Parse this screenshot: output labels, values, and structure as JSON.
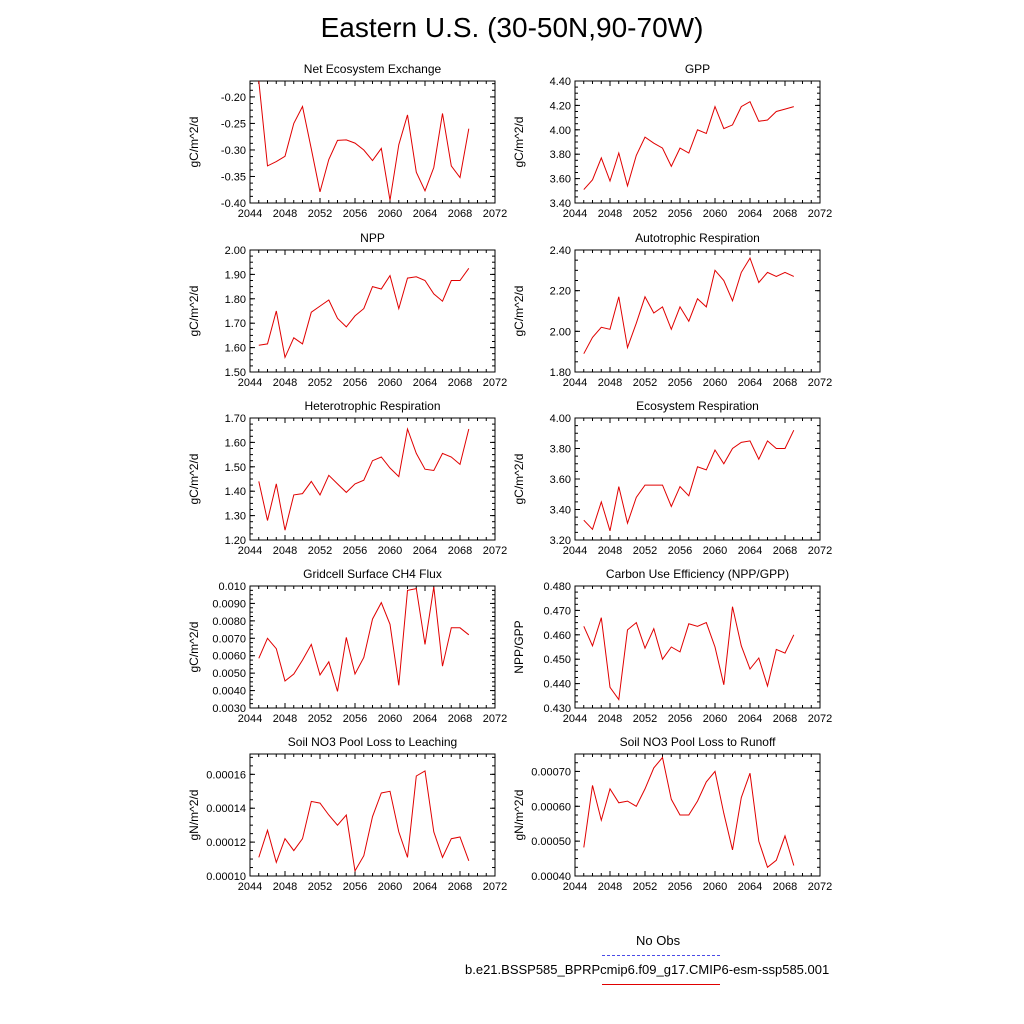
{
  "figure_title": "Eastern U.S. (30-50N,90-70W)",
  "legend": {
    "obs_label": "No Obs",
    "obs_color": "#4a4ae6",
    "model_label": "b.e21.BSSP585_BPRPcmip6.f09_g17.CMIP6-esm-ssp585.001",
    "model_color": "#e00000"
  },
  "chart_data": [
    {
      "type": "line",
      "title": "Net Ecosystem Exchange",
      "ylabel": "gC/m^2/d",
      "xlim": [
        2044,
        2072
      ],
      "xticks": [
        "2044",
        "2048",
        "2052",
        "2056",
        "2060",
        "2064",
        "2068",
        "2072"
      ],
      "ylim": [
        -0.4,
        -0.17
      ],
      "yticks": [
        "-0.20",
        "-0.25",
        "-0.30",
        "-0.35",
        "-0.40"
      ],
      "series": [
        {
          "color": "#e00000",
          "x": [
            2045,
            2046,
            2047,
            2048,
            2049,
            2050,
            2051,
            2052,
            2053,
            2054,
            2055,
            2056,
            2057,
            2058,
            2059,
            2060,
            2061,
            2062,
            2063,
            2064,
            2065,
            2066,
            2067,
            2068,
            2069
          ],
          "values": [
            -0.17,
            -0.33,
            -0.322,
            -0.312,
            -0.25,
            -0.218,
            -0.298,
            -0.379,
            -0.318,
            -0.282,
            -0.281,
            -0.287,
            -0.3,
            -0.32,
            -0.297,
            -0.395,
            -0.29,
            -0.234,
            -0.342,
            -0.377,
            -0.333,
            -0.231,
            -0.33,
            -0.352,
            -0.26
          ]
        }
      ]
    },
    {
      "type": "line",
      "title": "GPP",
      "ylabel": "gC/m^2/d",
      "xlim": [
        2044,
        2072
      ],
      "xticks": [
        "2044",
        "2048",
        "2052",
        "2056",
        "2060",
        "2064",
        "2068",
        "2072"
      ],
      "ylim": [
        3.4,
        4.4
      ],
      "yticks": [
        "4.40",
        "4.20",
        "4.00",
        "3.80",
        "3.60",
        "3.40"
      ],
      "series": [
        {
          "color": "#e00000",
          "x": [
            2045,
            2046,
            2047,
            2048,
            2049,
            2050,
            2051,
            2052,
            2053,
            2054,
            2055,
            2056,
            2057,
            2058,
            2059,
            2060,
            2061,
            2062,
            2063,
            2064,
            2065,
            2066,
            2067,
            2068,
            2069
          ],
          "values": [
            3.51,
            3.59,
            3.77,
            3.58,
            3.81,
            3.54,
            3.79,
            3.94,
            3.89,
            3.85,
            3.7,
            3.85,
            3.81,
            4.0,
            3.97,
            4.19,
            4.01,
            4.04,
            4.19,
            4.23,
            4.07,
            4.08,
            4.15,
            4.17,
            4.19
          ]
        }
      ]
    },
    {
      "type": "line",
      "title": "NPP",
      "ylabel": "gC/m^2/d",
      "xlim": [
        2044,
        2072
      ],
      "xticks": [
        "2044",
        "2048",
        "2052",
        "2056",
        "2060",
        "2064",
        "2068",
        "2072"
      ],
      "ylim": [
        1.5,
        2.0
      ],
      "yticks": [
        "2.00",
        "1.90",
        "1.80",
        "1.70",
        "1.60",
        "1.50"
      ],
      "series": [
        {
          "color": "#e00000",
          "x": [
            2045,
            2046,
            2047,
            2048,
            2049,
            2050,
            2051,
            2052,
            2053,
            2054,
            2055,
            2056,
            2057,
            2058,
            2059,
            2060,
            2061,
            2062,
            2063,
            2064,
            2065,
            2066,
            2067,
            2068,
            2069
          ],
          "values": [
            1.61,
            1.615,
            1.75,
            1.56,
            1.64,
            1.615,
            1.745,
            1.77,
            1.795,
            1.72,
            1.685,
            1.73,
            1.76,
            1.85,
            1.84,
            1.895,
            1.76,
            1.885,
            1.89,
            1.875,
            1.82,
            1.79,
            1.875,
            1.875,
            1.925
          ]
        }
      ]
    },
    {
      "type": "line",
      "title": "Autotrophic Respiration",
      "ylabel": "gC/m^2/d",
      "xlim": [
        2044,
        2072
      ],
      "xticks": [
        "2044",
        "2048",
        "2052",
        "2056",
        "2060",
        "2064",
        "2068",
        "2072"
      ],
      "ylim": [
        1.8,
        2.4
      ],
      "yticks": [
        "2.40",
        "2.20",
        "2.00",
        "1.80"
      ],
      "series": [
        {
          "color": "#e00000",
          "x": [
            2045,
            2046,
            2047,
            2048,
            2049,
            2050,
            2051,
            2052,
            2053,
            2054,
            2055,
            2056,
            2057,
            2058,
            2059,
            2060,
            2061,
            2062,
            2063,
            2064,
            2065,
            2066,
            2067,
            2068,
            2069
          ],
          "values": [
            1.89,
            1.97,
            2.02,
            2.01,
            2.17,
            1.92,
            2.04,
            2.17,
            2.09,
            2.12,
            2.01,
            2.12,
            2.05,
            2.16,
            2.12,
            2.3,
            2.25,
            2.15,
            2.29,
            2.36,
            2.24,
            2.29,
            2.27,
            2.29,
            2.27
          ]
        }
      ]
    },
    {
      "type": "line",
      "title": "Heterotrophic Respiration",
      "ylabel": "gC/m^2/d",
      "xlim": [
        2044,
        2072
      ],
      "xticks": [
        "2044",
        "2048",
        "2052",
        "2056",
        "2060",
        "2064",
        "2068",
        "2072"
      ],
      "ylim": [
        1.2,
        1.7
      ],
      "yticks": [
        "1.70",
        "1.60",
        "1.50",
        "1.40",
        "1.30",
        "1.20"
      ],
      "series": [
        {
          "color": "#e00000",
          "x": [
            2045,
            2046,
            2047,
            2048,
            2049,
            2050,
            2051,
            2052,
            2053,
            2054,
            2055,
            2056,
            2057,
            2058,
            2059,
            2060,
            2061,
            2062,
            2063,
            2064,
            2065,
            2066,
            2067,
            2068,
            2069
          ],
          "values": [
            1.44,
            1.28,
            1.43,
            1.24,
            1.385,
            1.39,
            1.44,
            1.385,
            1.465,
            1.43,
            1.395,
            1.43,
            1.445,
            1.525,
            1.54,
            1.495,
            1.46,
            1.655,
            1.555,
            1.49,
            1.485,
            1.555,
            1.54,
            1.51,
            1.655
          ]
        }
      ]
    },
    {
      "type": "line",
      "title": "Ecosystem Respiration",
      "ylabel": "gC/m^2/d",
      "xlim": [
        2044,
        2072
      ],
      "xticks": [
        "2044",
        "2048",
        "2052",
        "2056",
        "2060",
        "2064",
        "2068",
        "2072"
      ],
      "ylim": [
        3.2,
        4.0
      ],
      "yticks": [
        "4.00",
        "3.80",
        "3.60",
        "3.40",
        "3.20"
      ],
      "series": [
        {
          "color": "#e00000",
          "x": [
            2045,
            2046,
            2047,
            2048,
            2049,
            2050,
            2051,
            2052,
            2053,
            2054,
            2055,
            2056,
            2057,
            2058,
            2059,
            2060,
            2061,
            2062,
            2063,
            2064,
            2065,
            2066,
            2067,
            2068,
            2069
          ],
          "values": [
            3.33,
            3.27,
            3.45,
            3.26,
            3.55,
            3.31,
            3.48,
            3.56,
            3.56,
            3.56,
            3.42,
            3.55,
            3.49,
            3.68,
            3.66,
            3.79,
            3.7,
            3.8,
            3.84,
            3.85,
            3.73,
            3.85,
            3.8,
            3.8,
            3.92
          ]
        }
      ]
    },
    {
      "type": "line",
      "title": "Gridcell Surface CH4 Flux",
      "ylabel": "gC/m^2/d",
      "xlim": [
        2044,
        2072
      ],
      "xticks": [
        "2044",
        "2048",
        "2052",
        "2056",
        "2060",
        "2064",
        "2068",
        "2072"
      ],
      "ylim": [
        0.003,
        0.01
      ],
      "yticks": [
        "0.010",
        "0.0090",
        "0.0080",
        "0.0070",
        "0.0060",
        "0.0050",
        "0.0040",
        "0.0030"
      ],
      "series": [
        {
          "color": "#e00000",
          "x": [
            2045,
            2046,
            2047,
            2048,
            2049,
            2050,
            2051,
            2052,
            2053,
            2054,
            2055,
            2056,
            2057,
            2058,
            2059,
            2060,
            2061,
            2062,
            2063,
            2064,
            2065,
            2066,
            2067,
            2068,
            2069
          ],
          "values": [
            0.00585,
            0.007,
            0.0064,
            0.00455,
            0.00495,
            0.00575,
            0.00665,
            0.0049,
            0.00565,
            0.00395,
            0.00705,
            0.00495,
            0.0059,
            0.0081,
            0.00905,
            0.0078,
            0.0043,
            0.00975,
            0.00985,
            0.00665,
            0.00995,
            0.0054,
            0.0076,
            0.0076,
            0.0072
          ]
        }
      ]
    },
    {
      "type": "line",
      "title": "Carbon Use Efficiency (NPP/GPP)",
      "ylabel": "NPP/GPP",
      "xlim": [
        2044,
        2072
      ],
      "xticks": [
        "2044",
        "2048",
        "2052",
        "2056",
        "2060",
        "2064",
        "2068",
        "2072"
      ],
      "ylim": [
        0.43,
        0.48
      ],
      "yticks": [
        "0.480",
        "0.470",
        "0.460",
        "0.450",
        "0.440",
        "0.430"
      ],
      "series": [
        {
          "color": "#e00000",
          "x": [
            2045,
            2046,
            2047,
            2048,
            2049,
            2050,
            2051,
            2052,
            2053,
            2054,
            2055,
            2056,
            2057,
            2058,
            2059,
            2060,
            2061,
            2062,
            2063,
            2064,
            2065,
            2066,
            2067,
            2068,
            2069
          ],
          "values": [
            0.4635,
            0.4555,
            0.467,
            0.4385,
            0.4335,
            0.462,
            0.465,
            0.4545,
            0.4625,
            0.45,
            0.455,
            0.453,
            0.4645,
            0.4635,
            0.465,
            0.455,
            0.4395,
            0.4715,
            0.4555,
            0.446,
            0.4505,
            0.439,
            0.454,
            0.4525,
            0.46
          ]
        }
      ]
    },
    {
      "type": "line",
      "title": "Soil NO3 Pool Loss to Leaching",
      "ylabel": "gN/m^2/d",
      "xlim": [
        2044,
        2072
      ],
      "xticks": [
        "2044",
        "2048",
        "2052",
        "2056",
        "2060",
        "2064",
        "2068",
        "2072"
      ],
      "ylim": [
        0.0001,
        0.000172
      ],
      "yticks": [
        "0.00016",
        "0.00014",
        "0.00012",
        "0.00010"
      ],
      "series": [
        {
          "color": "#e00000",
          "x": [
            2045,
            2046,
            2047,
            2048,
            2049,
            2050,
            2051,
            2052,
            2053,
            2054,
            2055,
            2056,
            2057,
            2058,
            2059,
            2060,
            2061,
            2062,
            2063,
            2064,
            2065,
            2066,
            2067,
            2068,
            2069
          ],
          "values": [
            0.000111,
            0.000127,
            0.000108,
            0.000122,
            0.000115,
            0.000122,
            0.000144,
            0.000143,
            0.000136,
            0.00013,
            0.000136,
            0.000103,
            0.000112,
            0.000135,
            0.000149,
            0.00015,
            0.000126,
            0.000111,
            0.000159,
            0.000162,
            0.000126,
            0.000111,
            0.000122,
            0.000123,
            0.000109
          ]
        }
      ]
    },
    {
      "type": "line",
      "title": "Soil NO3 Pool Loss to Runoff",
      "ylabel": "gN/m^2/d",
      "xlim": [
        2044,
        2072
      ],
      "xticks": [
        "2044",
        "2048",
        "2052",
        "2056",
        "2060",
        "2064",
        "2068",
        "2072"
      ],
      "ylim": [
        0.0004,
        0.00075
      ],
      "yticks": [
        "0.00070",
        "0.00060",
        "0.00050",
        "0.00040"
      ],
      "series": [
        {
          "color": "#e00000",
          "x": [
            2045,
            2046,
            2047,
            2048,
            2049,
            2050,
            2051,
            2052,
            2053,
            2054,
            2055,
            2056,
            2057,
            2058,
            2059,
            2060,
            2061,
            2062,
            2063,
            2064,
            2065,
            2066,
            2067,
            2068,
            2069
          ],
          "values": [
            0.000482,
            0.00066,
            0.00056,
            0.00065,
            0.00061,
            0.000615,
            0.0006,
            0.00065,
            0.00071,
            0.00074,
            0.00062,
            0.000575,
            0.000575,
            0.000615,
            0.00067,
            0.0007,
            0.00058,
            0.000475,
            0.000625,
            0.000695,
            0.0005,
            0.000425,
            0.000445,
            0.000515,
            0.00043
          ]
        }
      ]
    }
  ]
}
